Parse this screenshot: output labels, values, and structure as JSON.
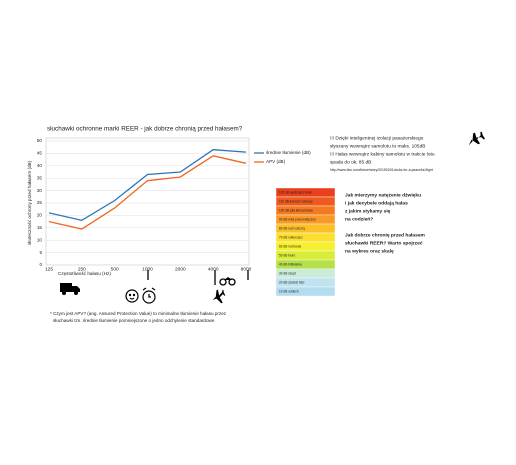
{
  "chart_data": {
    "type": "line",
    "title": "słuchawki ochronne  marki REER - jak dobrze chronią przed hałasem?",
    "y_label": "skuteczność ochrony przed hałasem (dB)",
    "x_label": "Częstotliwość hałasu (Hz)",
    "categories": [
      "125",
      "250",
      "500",
      "1000",
      "2000",
      "4000",
      "8000"
    ],
    "series": [
      {
        "name": "średnie tłumienie (dB)",
        "color": "#2e75b6",
        "values": [
          21,
          18,
          26,
          36.5,
          37.5,
          46.5,
          45.5
        ]
      },
      {
        "name": "APV (dB)",
        "color": "#f26522",
        "values": [
          17.5,
          14.5,
          23,
          34,
          35.5,
          44,
          41
        ]
      }
    ],
    "ylim": [
      0,
      50
    ],
    "yticks": [
      0,
      5,
      10,
      15,
      20,
      25,
      30,
      35,
      40,
      45,
      50
    ],
    "grid": true
  },
  "footnote": [
    "* Czym jest APV? (ang. Assured Protection Value)  to minimalne tłumienie hałasu przez",
    "słuchawki tzn. średnie tłumienie pomniejszone o jedno odchylenie standardowe"
  ],
  "info": [
    "!!! Dzięki inteligentnej izolacji pasażerskiego",
    "słyszany wewnątrz samolotu to maks. 105dB",
    "!!! Hałas wewnątrz kabiny samolotu w trakcie lotu",
    "spada do ok. 85 dB",
    "http://www.bbc.com/future/story/20150226-tricks-for-a-peaceful-flight"
  ],
  "questions": [
    "Jak mierzymy natężenie dźwięku",
    "i jak decybele oddają hałas",
    "z jakim stykamy się",
    "na codzień?",
    "Jak dobrze chronię przed hałasem",
    "słuchawki REER? Warto spojrzeć",
    "na wykres oraz skalę"
  ],
  "scale": [
    {
      "label": "120 dB   wystrzał z broni",
      "color": "#e8401c"
    },
    {
      "label": "110 dB   koncert rockowy",
      "color": "#ee5a1e"
    },
    {
      "label": "100 dB   piła łańcuchowa",
      "color": "#f47920"
    },
    {
      "label": "90 dB   młot pneumatyczny",
      "color": "#f89a24"
    },
    {
      "label": "80 dB   ruch uliczny",
      "color": "#fbbf2a"
    },
    {
      "label": "70 dB   odkurzacz",
      "color": "#fde02f"
    },
    {
      "label": "60 dB   rozmowa",
      "color": "#f5f030"
    },
    {
      "label": "50 dB   biuro",
      "color": "#d8ec3a"
    },
    {
      "label": "40 dB   biblioteka",
      "color": "#b6e04a"
    },
    {
      "label": "30 dB   szept",
      "color": "#c9ecd9"
    },
    {
      "label": "20 dB   szelest liści",
      "color": "#bfe3f0"
    },
    {
      "label": "10 dB   oddech",
      "color": "#b3dcef"
    }
  ]
}
